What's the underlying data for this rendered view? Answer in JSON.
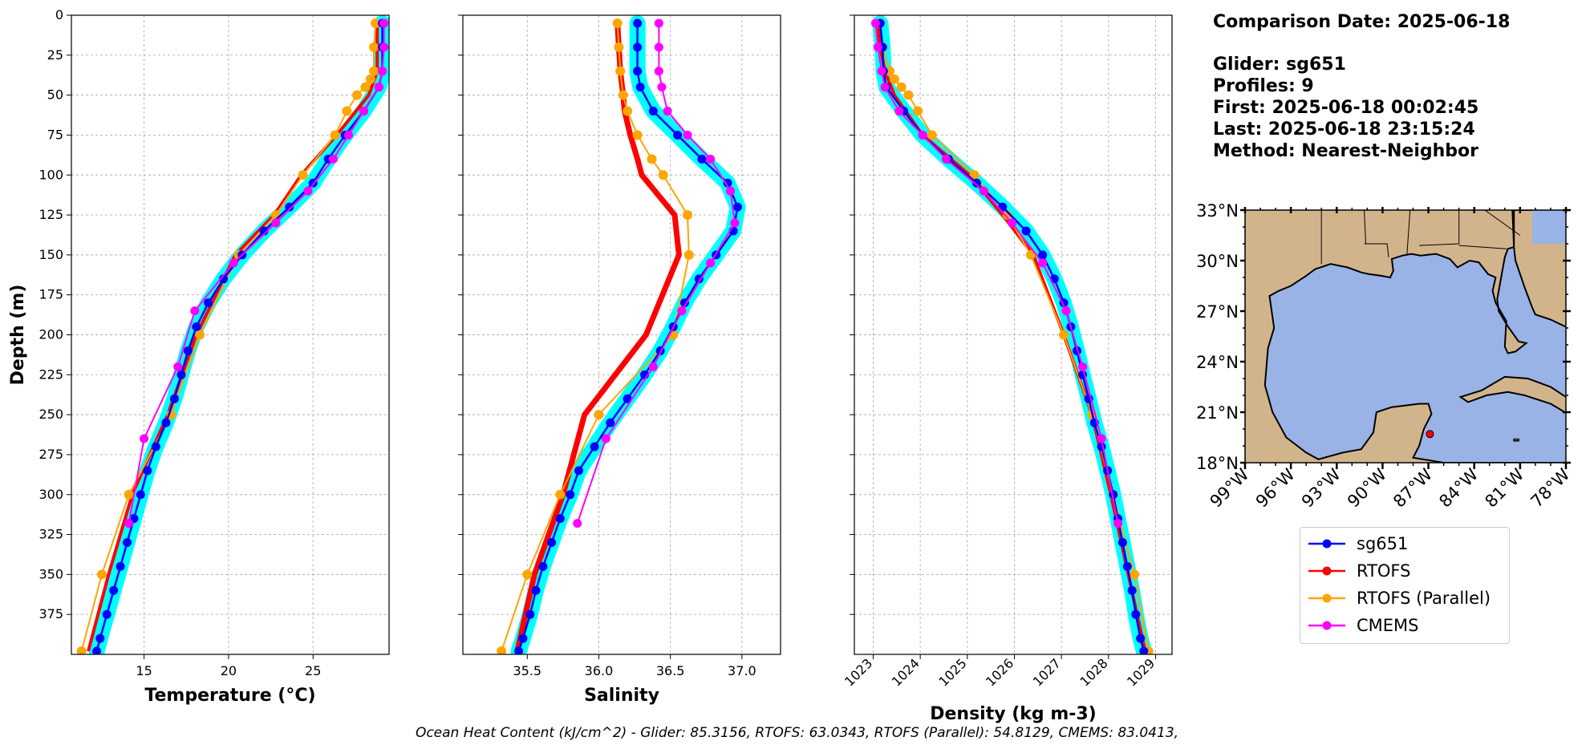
{
  "info": {
    "date_line": "Comparison Date: 2025-06-18",
    "glider_line": "Glider: sg651",
    "profiles_line": "Profiles: 9",
    "first_line": "First: 2025-06-18 00:02:45",
    "last_line": "Last: 2025-06-18 23:15:24",
    "method_line": "Method: Nearest-Neighbor"
  },
  "caption": "Ocean Heat Content (kJ/cm^2) - Glider: 85.3156,  RTOFS: 63.0343,  RTOFS (Parallel): 54.8129,  CMEMS: 83.0413,",
  "colors": {
    "glider": "#0000ff",
    "glider_envelope": "#00ffff",
    "rtofs": "#ff0000",
    "rtofs_parallel": "#ffa500",
    "cmems": "#ff00ff",
    "land": "#d2b48c",
    "water": "#99b3e6"
  },
  "legend": [
    {
      "name": "sg651",
      "color": "#0000ff"
    },
    {
      "name": "RTOFS",
      "color": "#ff0000"
    },
    {
      "name": "RTOFS (Parallel)",
      "color": "#ffa500"
    },
    {
      "name": "CMEMS",
      "color": "#ff00ff"
    }
  ],
  "chart_data": [
    {
      "type": "line",
      "xlabel": "Temperature (°C)",
      "ylabel": "Depth (m)",
      "xlim": [
        10.7,
        29.5
      ],
      "ylim": [
        400,
        0
      ],
      "xticks": [
        15,
        20,
        25
      ],
      "yticks": [
        0,
        25,
        50,
        75,
        100,
        125,
        150,
        175,
        200,
        225,
        250,
        275,
        300,
        325,
        350,
        375
      ],
      "grid": true,
      "series": [
        {
          "name": "sg651",
          "depth": [
            5,
            20,
            35,
            45,
            60,
            75,
            90,
            105,
            120,
            135,
            150,
            165,
            180,
            195,
            210,
            225,
            240,
            255,
            270,
            285,
            300,
            315,
            330,
            345,
            360,
            375,
            390,
            398
          ],
          "values": [
            29.1,
            29.1,
            29.1,
            28.9,
            28.0,
            26.9,
            25.9,
            25.0,
            23.6,
            22.1,
            20.8,
            19.7,
            18.8,
            18.1,
            17.6,
            17.2,
            16.8,
            16.3,
            15.7,
            15.2,
            14.8,
            14.4,
            14.0,
            13.6,
            13.2,
            12.8,
            12.4,
            12.2
          ]
        },
        {
          "name": "RTOFS",
          "depth": [
            5,
            20,
            35,
            50,
            75,
            100,
            125,
            150,
            200,
            250,
            300,
            350,
            398
          ],
          "values": [
            28.8,
            28.8,
            28.8,
            28.3,
            26.4,
            24.3,
            22.7,
            20.4,
            18.1,
            16.4,
            14.3,
            12.9,
            11.7
          ]
        },
        {
          "name": "RTOFS (Parallel)",
          "depth": [
            5,
            20,
            35,
            40,
            45,
            50,
            60,
            75,
            100,
            125,
            150,
            200,
            250,
            300,
            350,
            398
          ],
          "values": [
            28.7,
            28.6,
            28.6,
            28.4,
            28.1,
            27.6,
            27.0,
            26.3,
            24.4,
            22.8,
            20.6,
            18.3,
            16.6,
            14.1,
            12.5,
            11.3
          ]
        },
        {
          "name": "CMEMS",
          "depth": [
            5,
            20,
            35,
            45,
            60,
            75,
            90,
            110,
            130,
            155,
            185,
            220,
            265,
            318
          ],
          "values": [
            29.2,
            29.2,
            29.1,
            28.9,
            28.0,
            27.1,
            26.2,
            24.7,
            22.8,
            20.3,
            18.0,
            17.0,
            15.0,
            14.1
          ]
        }
      ]
    },
    {
      "type": "line",
      "xlabel": "Salinity",
      "xlim": [
        35.05,
        37.27
      ],
      "ylim": [
        400,
        0
      ],
      "xticks": [
        35.5,
        36.0,
        36.5,
        37.0
      ],
      "grid": true,
      "series": [
        {
          "name": "sg651",
          "depth": [
            5,
            20,
            35,
            45,
            60,
            75,
            90,
            105,
            120,
            135,
            150,
            165,
            180,
            195,
            210,
            225,
            240,
            255,
            270,
            285,
            300,
            315,
            330,
            345,
            360,
            375,
            390,
            398
          ],
          "values": [
            36.27,
            36.27,
            36.27,
            36.29,
            36.38,
            36.55,
            36.72,
            36.9,
            36.97,
            36.94,
            36.82,
            36.7,
            36.6,
            36.52,
            36.43,
            36.32,
            36.2,
            36.08,
            35.97,
            35.86,
            35.8,
            35.73,
            35.67,
            35.61,
            35.56,
            35.52,
            35.47,
            35.44
          ]
        },
        {
          "name": "RTOFS",
          "depth": [
            5,
            20,
            35,
            50,
            60,
            75,
            90,
            100,
            125,
            150,
            200,
            250,
            300,
            350,
            398
          ],
          "values": [
            36.13,
            36.14,
            36.15,
            36.17,
            36.18,
            36.22,
            36.27,
            36.3,
            36.53,
            36.56,
            36.33,
            35.9,
            35.75,
            35.55,
            35.43
          ]
        },
        {
          "name": "RTOFS (Parallel)",
          "depth": [
            5,
            20,
            35,
            50,
            60,
            75,
            90,
            100,
            125,
            150,
            200,
            250,
            300,
            350,
            398
          ],
          "values": [
            36.13,
            36.14,
            36.15,
            36.17,
            36.2,
            36.27,
            36.37,
            36.45,
            36.62,
            36.63,
            36.52,
            36.0,
            35.73,
            35.5,
            35.32
          ]
        },
        {
          "name": "CMEMS",
          "depth": [
            5,
            20,
            35,
            45,
            60,
            75,
            90,
            110,
            130,
            155,
            185,
            220,
            265,
            318
          ],
          "values": [
            36.42,
            36.42,
            36.42,
            36.44,
            36.48,
            36.62,
            36.78,
            36.92,
            36.95,
            36.78,
            36.58,
            36.38,
            36.05,
            35.85
          ]
        }
      ]
    },
    {
      "type": "line",
      "xlabel": "Density (kg m-3)",
      "xlim": [
        1022.6,
        1029.35
      ],
      "ylim": [
        400,
        0
      ],
      "xticks": [
        1023,
        1024,
        1025,
        1026,
        1027,
        1028,
        1029
      ],
      "grid": true,
      "series": [
        {
          "name": "sg651",
          "depth": [
            5,
            20,
            35,
            45,
            60,
            75,
            90,
            105,
            120,
            135,
            150,
            165,
            180,
            195,
            210,
            225,
            240,
            255,
            270,
            285,
            300,
            315,
            330,
            345,
            360,
            375,
            390,
            398
          ],
          "values": [
            1023.15,
            1023.2,
            1023.22,
            1023.28,
            1023.65,
            1024.05,
            1024.6,
            1025.2,
            1025.75,
            1026.25,
            1026.6,
            1026.85,
            1027.05,
            1027.2,
            1027.33,
            1027.45,
            1027.58,
            1027.7,
            1027.85,
            1027.98,
            1028.1,
            1028.2,
            1028.3,
            1028.4,
            1028.5,
            1028.58,
            1028.68,
            1028.75
          ]
        },
        {
          "name": "RTOFS",
          "depth": [
            5,
            20,
            35,
            50,
            75,
            100,
            125,
            150,
            200,
            250,
            300,
            350,
            398
          ],
          "values": [
            1023.1,
            1023.15,
            1023.25,
            1023.45,
            1024.05,
            1025.05,
            1025.75,
            1026.4,
            1027.05,
            1027.65,
            1028.05,
            1028.42,
            1028.78
          ]
        },
        {
          "name": "RTOFS (Parallel)",
          "depth": [
            5,
            20,
            35,
            40,
            45,
            50,
            60,
            75,
            100,
            125,
            150,
            200,
            250,
            300,
            350,
            398
          ],
          "values": [
            1023.15,
            1023.2,
            1023.35,
            1023.45,
            1023.6,
            1023.75,
            1023.95,
            1024.25,
            1025.15,
            1025.85,
            1026.35,
            1027.05,
            1027.65,
            1028.1,
            1028.55,
            1028.85
          ]
        },
        {
          "name": "CMEMS",
          "depth": [
            5,
            20,
            35,
            45,
            60,
            75,
            90,
            110,
            130,
            155,
            185,
            220,
            265,
            318
          ],
          "values": [
            1023.05,
            1023.1,
            1023.18,
            1023.25,
            1023.55,
            1024.05,
            1024.55,
            1025.35,
            1025.95,
            1026.6,
            1027.1,
            1027.45,
            1027.85,
            1028.2
          ]
        }
      ]
    },
    {
      "type": "map",
      "lon_ticks": [
        "99°W",
        "96°W",
        "93°W",
        "90°W",
        "87°W",
        "84°W",
        "81°W",
        "78°W"
      ],
      "lat_ticks": [
        "33°N",
        "30°N",
        "27°N",
        "24°N",
        "21°N",
        "18°N"
      ],
      "lon_range": [
        -99,
        -78
      ],
      "lat_range": [
        18,
        33
      ],
      "marker": {
        "lon": -86.9,
        "lat": 19.7,
        "color": "#ff0000"
      }
    }
  ]
}
